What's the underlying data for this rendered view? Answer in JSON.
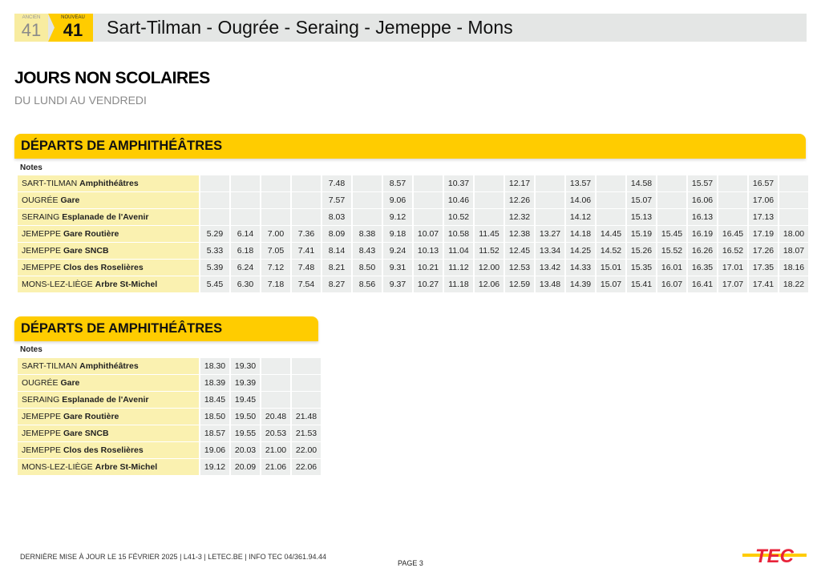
{
  "header": {
    "old_label": "ANCIEN",
    "old_number": "41",
    "new_label": "NOUVEAU",
    "new_number": "41",
    "route_title": "Sart-Tilman - Ougrée - Seraing - Jemeppe - Mons"
  },
  "day_type": {
    "title": "JOURS NON SCOLAIRES",
    "subtitle": "DU LUNDI AU VENDREDI"
  },
  "tables": [
    {
      "title": "DÉPARTS DE AMPHITHÉÂTRES",
      "notes_label": "Notes",
      "rows": [
        {
          "city": "SART-TILMAN",
          "stop": "Amphithéâtres",
          "times": [
            "",
            "",
            "",
            "",
            "7.48",
            "",
            "8.57",
            "",
            "10.37",
            "",
            "12.17",
            "",
            "13.57",
            "",
            "14.58",
            "",
            "15.57",
            "",
            "16.57",
            ""
          ]
        },
        {
          "city": "OUGRÉE",
          "stop": "Gare",
          "times": [
            "",
            "",
            "",
            "",
            "7.57",
            "",
            "9.06",
            "",
            "10.46",
            "",
            "12.26",
            "",
            "14.06",
            "",
            "15.07",
            "",
            "16.06",
            "",
            "17.06",
            ""
          ]
        },
        {
          "city": "SERAING",
          "stop": "Esplanade de l'Avenir",
          "times": [
            "",
            "",
            "",
            "",
            "8.03",
            "",
            "9.12",
            "",
            "10.52",
            "",
            "12.32",
            "",
            "14.12",
            "",
            "15.13",
            "",
            "16.13",
            "",
            "17.13",
            ""
          ]
        },
        {
          "city": "JEMEPPE",
          "stop": "Gare Routière",
          "times": [
            "5.29",
            "6.14",
            "7.00",
            "7.36",
            "8.09",
            "8.38",
            "9.18",
            "10.07",
            "10.58",
            "11.45",
            "12.38",
            "13.27",
            "14.18",
            "14.45",
            "15.19",
            "15.45",
            "16.19",
            "16.45",
            "17.19",
            "18.00"
          ]
        },
        {
          "city": "JEMEPPE",
          "stop": "Gare SNCB",
          "times": [
            "5.33",
            "6.18",
            "7.05",
            "7.41",
            "8.14",
            "8.43",
            "9.24",
            "10.13",
            "11.04",
            "11.52",
            "12.45",
            "13.34",
            "14.25",
            "14.52",
            "15.26",
            "15.52",
            "16.26",
            "16.52",
            "17.26",
            "18.07"
          ]
        },
        {
          "city": "JEMEPPE",
          "stop": "Clos des Roselières",
          "times": [
            "5.39",
            "6.24",
            "7.12",
            "7.48",
            "8.21",
            "8.50",
            "9.31",
            "10.21",
            "11.12",
            "12.00",
            "12.53",
            "13.42",
            "14.33",
            "15.01",
            "15.35",
            "16.01",
            "16.35",
            "17.01",
            "17.35",
            "18.16"
          ]
        },
        {
          "city": "MONS-LEZ-LIÈGE",
          "stop": "Arbre St-Michel",
          "times": [
            "5.45",
            "6.30",
            "7.18",
            "7.54",
            "8.27",
            "8.56",
            "9.37",
            "10.27",
            "11.18",
            "12.06",
            "12.59",
            "13.48",
            "14.39",
            "15.07",
            "15.41",
            "16.07",
            "16.41",
            "17.07",
            "17.41",
            "18.22"
          ]
        }
      ]
    },
    {
      "title": "DÉPARTS DE AMPHITHÉÂTRES",
      "notes_label": "Notes",
      "rows": [
        {
          "city": "SART-TILMAN",
          "stop": "Amphithéâtres",
          "times": [
            "18.30",
            "19.30",
            "",
            ""
          ]
        },
        {
          "city": "OUGRÉE",
          "stop": "Gare",
          "times": [
            "18.39",
            "19.39",
            "",
            ""
          ]
        },
        {
          "city": "SERAING",
          "stop": "Esplanade de l'Avenir",
          "times": [
            "18.45",
            "19.45",
            "",
            ""
          ]
        },
        {
          "city": "JEMEPPE",
          "stop": "Gare Routière",
          "times": [
            "18.50",
            "19.50",
            "20.48",
            "21.48"
          ]
        },
        {
          "city": "JEMEPPE",
          "stop": "Gare SNCB",
          "times": [
            "18.57",
            "19.55",
            "20.53",
            "21.53"
          ]
        },
        {
          "city": "JEMEPPE",
          "stop": "Clos des Roselières",
          "times": [
            "19.06",
            "20.03",
            "21.00",
            "22.00"
          ]
        },
        {
          "city": "MONS-LEZ-LIÈGE",
          "stop": "Arbre St-Michel",
          "times": [
            "19.12",
            "20.09",
            "21.06",
            "22.06"
          ]
        }
      ]
    }
  ],
  "footer": {
    "text": "DERNIÈRE MISE À JOUR LE 15 FÉVRIER 2025  |  L41-3  |  LETEC.BE  |  INFO TEC 04/361.94.44",
    "page": "PAGE 3",
    "logo_text": "TEC"
  },
  "colors": {
    "brand_yellow": "#ffcc00",
    "stop_bg": "#faf1b0",
    "cell_bg": "#eceeed",
    "logo_red": "#e8233a"
  }
}
